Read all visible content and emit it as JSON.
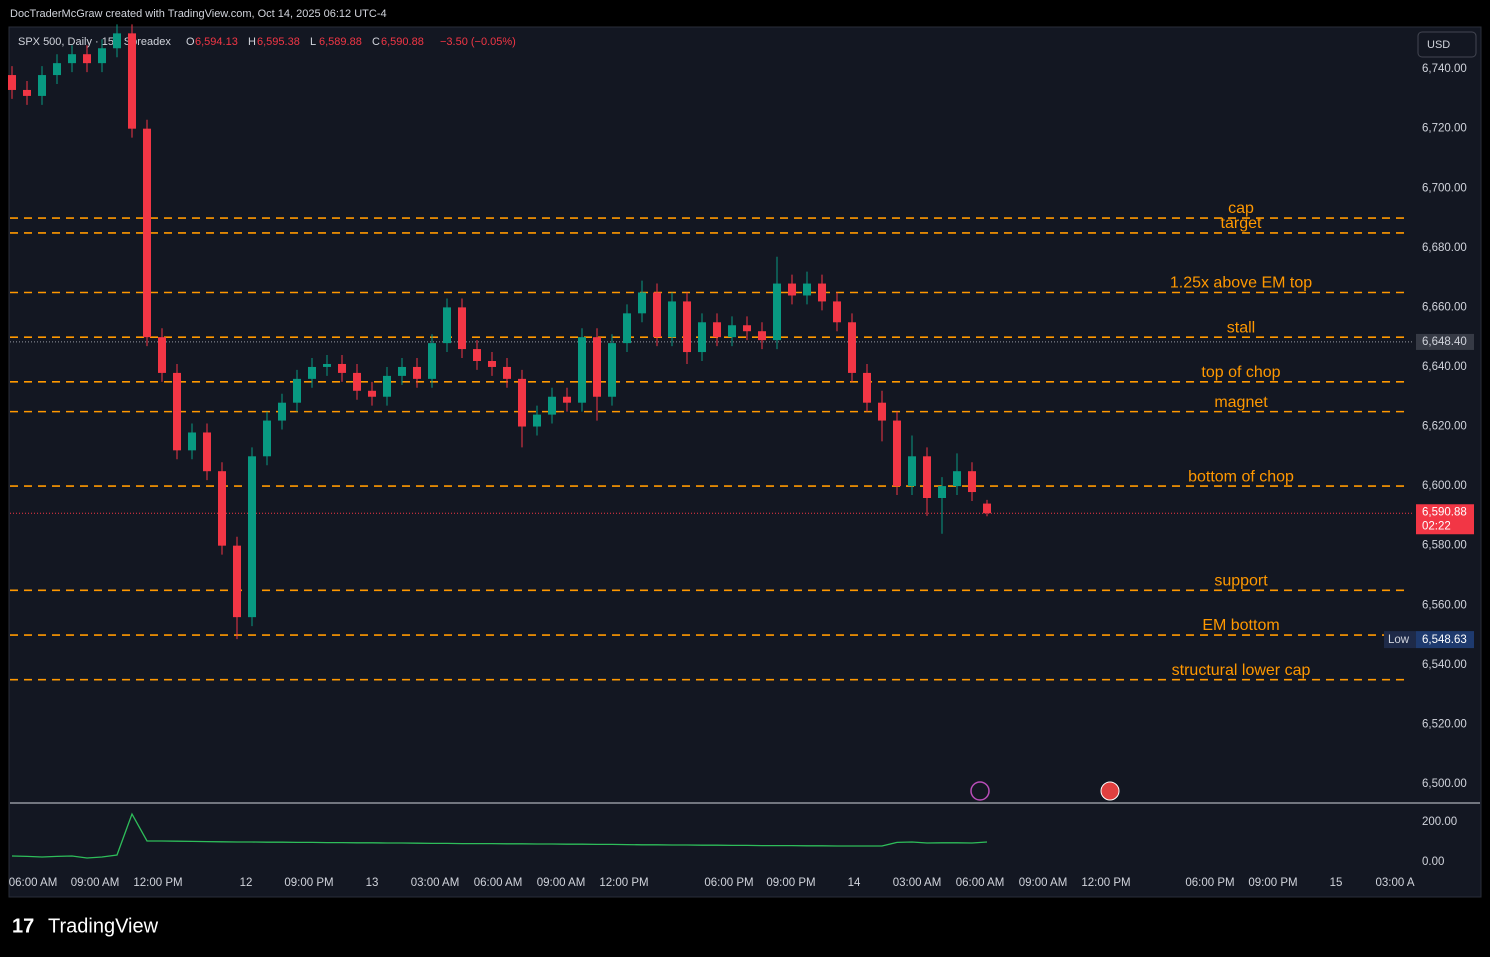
{
  "header": {
    "credit": "DocTraderMcGraw created with TradingView.com, Oct 14, 2025 06:12 UTC-4",
    "symbol": "SPX 500, Daily · 15 · Spreadex",
    "ohlc": [
      {
        "key": "O",
        "value": 6594.13,
        "label": "6,594.13"
      },
      {
        "key": "H",
        "value": 6595.38,
        "label": "6,595.38"
      },
      {
        "key": "L",
        "value": 6589.88,
        "label": "6,589.88"
      },
      {
        "key": "C",
        "value": 6590.88,
        "label": "6,590.88"
      }
    ],
    "change": {
      "value": -3.5,
      "label": "−3.50 (−0.05%)"
    }
  },
  "currency": "USD",
  "brand": "TradingView",
  "chart_data": {
    "type": "candlestick",
    "up_color": "#089981",
    "down_color": "#f23645",
    "open": [
      6738,
      6733,
      6731,
      6738,
      6742,
      6745,
      6742,
      6747,
      6752,
      6720,
      6650,
      6638,
      6612,
      6618,
      6605,
      6580,
      6556,
      6610,
      6622,
      6628,
      6636,
      6640,
      6641,
      6638,
      6632,
      6630,
      6637,
      6640,
      6636,
      6648,
      6660,
      6646,
      6642,
      6640,
      6636,
      6620,
      6624,
      6630,
      6628,
      6650,
      6630,
      6648,
      6658,
      6665,
      6650,
      6662,
      6645,
      6655,
      6650,
      6654,
      6652,
      6649,
      6668,
      6664,
      6668,
      6662,
      6655,
      6638,
      6628,
      6622,
      6600,
      6610,
      6596,
      6600,
      6605,
      6594.13
    ],
    "high": [
      6741,
      6736,
      6741,
      6745,
      6748,
      6748,
      6750,
      6755,
      6755,
      6723,
      6653,
      6641,
      6621,
      6621,
      6608,
      6583,
      6613,
      6625,
      6631,
      6639,
      6643,
      6644,
      6644,
      6641,
      6635,
      6640,
      6643,
      6643,
      6651,
      6663,
      6663,
      6649,
      6645,
      6643,
      6639,
      6627,
      6633,
      6633,
      6653,
      6653,
      6651,
      6661,
      6669,
      6668,
      6665,
      6665,
      6658,
      6658,
      6657,
      6657,
      6655,
      6677,
      6671,
      6672,
      6671,
      6665,
      6658,
      6641,
      6632,
      6625,
      6617,
      6613,
      6603,
      6611,
      6608,
      6595.38
    ],
    "low": [
      6730,
      6728,
      6728,
      6735,
      6739,
      6739,
      6739,
      6744,
      6717,
      6647,
      6635,
      6609,
      6609,
      6602,
      6577,
      6548.63,
      6553,
      6607,
      6619,
      6625,
      6633,
      6637,
      6635,
      6629,
      6627,
      6627,
      6634,
      6633,
      6633,
      6645,
      6643,
      6639,
      6637,
      6633,
      6613,
      6617,
      6621,
      6625,
      6625,
      6622,
      6627,
      6645,
      6655,
      6647,
      6647,
      6641,
      6642,
      6647,
      6647,
      6649,
      6646,
      6646,
      6661,
      6661,
      6659,
      6652,
      6635,
      6625,
      6615,
      6597,
      6597,
      6590,
      6584,
      6597,
      6595,
      6589.88
    ],
    "close": [
      6733,
      6731,
      6738,
      6742,
      6745,
      6742,
      6747,
      6752,
      6720,
      6650,
      6638,
      6612,
      6618,
      6605,
      6580,
      6556,
      6610,
      6622,
      6628,
      6636,
      6640,
      6641,
      6638,
      6632,
      6630,
      6637,
      6640,
      6636,
      6648,
      6660,
      6646,
      6642,
      6640,
      6636,
      6620,
      6624,
      6630,
      6628,
      6650,
      6630,
      6648,
      6658,
      6665,
      6650,
      6662,
      6645,
      6655,
      6650,
      6654,
      6652,
      6649,
      6668,
      6664,
      6668,
      6662,
      6655,
      6638,
      6628,
      6622,
      6600,
      6610,
      6596,
      6600,
      6605,
      6598,
      6590.88
    ],
    "ylim": [
      6493.6,
      6753.8
    ],
    "yticks": [
      {
        "value": 6740,
        "label": "6,740.00"
      },
      {
        "value": 6720,
        "label": "6,720.00"
      },
      {
        "value": 6700,
        "label": "6,700.00"
      },
      {
        "value": 6680,
        "label": "6,680.00"
      },
      {
        "value": 6660,
        "label": "6,660.00"
      },
      {
        "value": 6640,
        "label": "6,640.00"
      },
      {
        "value": 6620,
        "label": "6,620.00"
      },
      {
        "value": 6600,
        "label": "6,600.00"
      },
      {
        "value": 6580,
        "label": "6,580.00"
      },
      {
        "value": 6560,
        "label": "6,560.00"
      },
      {
        "value": 6540,
        "label": "6,540.00"
      },
      {
        "value": 6520,
        "label": "6,520.00"
      },
      {
        "value": 6500,
        "label": "6,500.00"
      }
    ],
    "level_color": "#ff9800",
    "levels": [
      {
        "label": "cap",
        "value": 6690
      },
      {
        "label": "target",
        "value": 6685
      },
      {
        "label": "1.25x above EM top",
        "value": 6665
      },
      {
        "label": "stall",
        "value": 6650
      },
      {
        "label": "top of chop",
        "value": 6635
      },
      {
        "label": "magnet",
        "value": 6625
      },
      {
        "label": "bottom of chop",
        "value": 6600
      },
      {
        "label": "support",
        "value": 6565
      },
      {
        "label": "EM bottom",
        "value": 6550
      },
      {
        "label": "structural lower cap",
        "value": 6535
      }
    ],
    "crosshair": {
      "value": 6648.4,
      "label": "6,648.40"
    },
    "last": {
      "value": 6590.88,
      "label": "6,590.88",
      "countdown": "02:22"
    },
    "low_marker": {
      "name": "Low",
      "value": 6548.63,
      "label": "6,548.63"
    },
    "xlabels": [
      "06:00 AM",
      "09:00 AM",
      "12:00 PM",
      "12",
      "09:00 PM",
      "13",
      "03:00 AM",
      "06:00 AM",
      "09:00 AM",
      "12:00 PM",
      "06:00 PM",
      "09:00 PM",
      "14",
      "03:00 AM",
      "06:00 AM",
      "09:00 AM",
      "12:00 PM",
      "06:00 PM",
      "09:00 PM",
      "15",
      "03:00 A"
    ],
    "indicator": {
      "color": "#2ebd5a",
      "ylim": [
        -55,
        285
      ],
      "yticks": [
        {
          "value": 200,
          "label": "200.00"
        },
        {
          "value": 0,
          "label": "0.00"
        }
      ],
      "values": [
        30,
        28,
        25,
        28,
        30,
        20,
        25,
        35,
        240,
        105,
        105,
        104,
        103,
        102,
        101,
        100,
        100,
        99,
        99,
        98,
        98,
        97,
        97,
        96,
        96,
        95,
        95,
        94,
        93,
        93,
        92,
        92,
        92,
        91,
        91,
        90,
        90,
        89,
        89,
        88,
        88,
        87,
        86,
        86,
        85,
        85,
        84,
        84,
        83,
        83,
        82,
        82,
        82,
        81,
        81,
        80,
        80,
        80,
        80,
        98,
        100,
        95,
        96,
        96,
        95,
        100
      ]
    }
  }
}
